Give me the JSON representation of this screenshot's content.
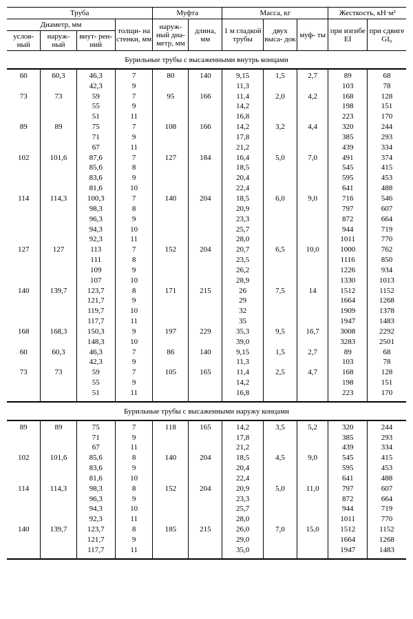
{
  "headers": {
    "g_pipe": "Труба",
    "g_coupling": "Муфта",
    "g_mass": "Масса, кг",
    "g_stiff": "Жесткость, кН·м²",
    "g_diam": "Диаметр, мм",
    "uslov": "услов-\nный",
    "naruj": "наруж-\nный",
    "vnutr": "внут-\nрен-ний",
    "tolsh": "толщи-\nна\nстенки,\nмм",
    "c_diam": "наруж-\nный\nдиа-\nметр,\nмм",
    "c_len": "длина,\nмм",
    "m_1m": "1 м\nгладкой\nтрубы",
    "m_vys": "двух\nвыса-\nдок",
    "m_muf": "муф-\nты",
    "s_ei": "при\nизгибе\nEI",
    "s_gi": "при\nсдвиге\nGI₀"
  },
  "section1": "Бурильные трубы с высаженными внутрь концами",
  "section2": "Бурильные трубы с высаженными наружу концами",
  "rows1": [
    [
      "60",
      "60,3",
      "46,3",
      "7",
      "80",
      "140",
      "9,15",
      "1,5",
      "2,7",
      "89",
      "68"
    ],
    [
      "",
      "",
      "42,3",
      "9",
      "",
      "",
      "11,3",
      "",
      "",
      "103",
      "78"
    ],
    [
      "73",
      "73",
      "59",
      "7",
      "95",
      "166",
      "11,4",
      "2,0",
      "4,2",
      "168",
      "128"
    ],
    [
      "",
      "",
      "55",
      "9",
      "",
      "",
      "14,2",
      "",
      "",
      "198",
      "151"
    ],
    [
      "",
      "",
      "51",
      "11",
      "",
      "",
      "16,8",
      "",
      "",
      "223",
      "170"
    ],
    [
      "89",
      "89",
      "75",
      "7",
      "108",
      "166",
      "14,2",
      "3,2",
      "4,4",
      "320",
      "244"
    ],
    [
      "",
      "",
      "71",
      "9",
      "",
      "",
      "17,8",
      "",
      "",
      "385",
      "293"
    ],
    [
      "",
      "",
      "67",
      "11",
      "",
      "",
      "21,2",
      "",
      "",
      "439",
      "334"
    ],
    [
      "102",
      "101,6",
      "87,6",
      "7",
      "127",
      "184",
      "16,4",
      "5,0",
      "7,0",
      "491",
      "374"
    ],
    [
      "",
      "",
      "85,6",
      "8",
      "",
      "",
      "18,5",
      "",
      "",
      "545",
      "415"
    ],
    [
      "",
      "",
      "83,6",
      "9",
      "",
      "",
      "20,4",
      "",
      "",
      "595",
      "453"
    ],
    [
      "",
      "",
      "81,6",
      "10",
      "",
      "",
      "22,4",
      "",
      "",
      "641",
      "488"
    ],
    [
      "114",
      "114,3",
      "100,3",
      "7",
      "140",
      "204",
      "18,5",
      "6,0",
      "9,0",
      "716",
      "546"
    ],
    [
      "",
      "",
      "98,3",
      "8",
      "",
      "",
      "20,9",
      "",
      "",
      "797",
      "607"
    ],
    [
      "",
      "",
      "96,3",
      "9",
      "",
      "",
      "23,3",
      "",
      "",
      "872",
      "664"
    ],
    [
      "",
      "",
      "94,3",
      "10",
      "",
      "",
      "25,7",
      "",
      "",
      "944",
      "719"
    ],
    [
      "",
      "",
      "92,3",
      "11",
      "",
      "",
      "28,0",
      "",
      "",
      "1011",
      "770"
    ],
    [
      "127",
      "127",
      "113",
      "7",
      "152",
      "204",
      "20,7",
      "6,5",
      "10,0",
      "1000",
      "762"
    ],
    [
      "",
      "",
      "111",
      "8",
      "",
      "",
      "23,5",
      "",
      "",
      "1116",
      "850"
    ],
    [
      "",
      "",
      "109",
      "9",
      "",
      "",
      "26,2",
      "",
      "",
      "1226",
      "934"
    ],
    [
      "",
      "",
      "107",
      "10",
      "",
      "",
      "28,9",
      "",
      "",
      "1330",
      "1013"
    ],
    [
      "140",
      "139,7",
      "123,7",
      "8",
      "171",
      "215",
      "26",
      "7,5",
      "14",
      "1512",
      "1152"
    ],
    [
      "",
      "",
      "121,7",
      "9",
      "",
      "",
      "29",
      "",
      "",
      "1664",
      "1268"
    ],
    [
      "",
      "",
      "119,7",
      "10",
      "",
      "",
      "32",
      "",
      "",
      "1909",
      "1378"
    ],
    [
      "",
      "",
      "117,7",
      "11",
      "",
      "",
      "35",
      "",
      "",
      "1947",
      "1483"
    ],
    [
      "168",
      "168,3",
      "150,3",
      "9",
      "197",
      "229",
      "35,3",
      "9,5",
      "16,7",
      "3008",
      "2292"
    ],
    [
      "",
      "",
      "148,3",
      "10",
      "",
      "",
      "39,0",
      "",
      "",
      "3283",
      "2501"
    ],
    [
      "60",
      "60,3",
      "46,3",
      "7",
      "86",
      "140",
      "9,15",
      "1,5",
      "2,7",
      "89",
      "68"
    ],
    [
      "",
      "",
      "42,3",
      "9",
      "",
      "",
      "11,3",
      "",
      "",
      "103",
      "78"
    ],
    [
      "73",
      "73",
      "59",
      "7",
      "105",
      "165",
      "11,4",
      "2,5",
      "4,7",
      "168",
      "128"
    ],
    [
      "",
      "",
      "55",
      "9",
      "",
      "",
      "14,2",
      "",
      "",
      "198",
      "151"
    ],
    [
      "",
      "",
      "51",
      "11",
      "",
      "",
      "16,8",
      "",
      "",
      "223",
      "170"
    ]
  ],
  "rows2": [
    [
      "89",
      "89",
      "75",
      "7",
      "118",
      "165",
      "14,2",
      "3,5",
      "5,2",
      "320",
      "244"
    ],
    [
      "",
      "",
      "71",
      "9",
      "",
      "",
      "17,8",
      "",
      "",
      "385",
      "293"
    ],
    [
      "",
      "",
      "67",
      "11",
      "",
      "",
      "21,2",
      "",
      "",
      "439",
      "334"
    ],
    [
      "102",
      "101,6",
      "85,6",
      "8",
      "140",
      "204",
      "18,5",
      "4,5",
      "9,0",
      "545",
      "415"
    ],
    [
      "",
      "",
      "83,6",
      "9",
      "",
      "",
      "20,4",
      "",
      "",
      "595",
      "453"
    ],
    [
      "",
      "",
      "81,6",
      "10",
      "",
      "",
      "22,4",
      "",
      "",
      "641",
      "488"
    ],
    [
      "114",
      "114,3",
      "98,3",
      "8",
      "152",
      "204",
      "20,9",
      "5,0",
      "11,0",
      "797",
      "607"
    ],
    [
      "",
      "",
      "96,3",
      "9",
      "",
      "",
      "23,3",
      "",
      "",
      "872",
      "664"
    ],
    [
      "",
      "",
      "94,3",
      "10",
      "",
      "",
      "25,7",
      "",
      "",
      "944",
      "719"
    ],
    [
      "",
      "",
      "92,3",
      "11",
      "",
      "",
      "28,0",
      "",
      "",
      "1011",
      "770"
    ],
    [
      "140",
      "139,7",
      "123,7",
      "8",
      "185",
      "215",
      "26,0",
      "7,0",
      "15,0",
      "1512",
      "1152"
    ],
    [
      "",
      "",
      "121,7",
      "9",
      "",
      "",
      "29,0",
      "",
      "",
      "1664",
      "1268"
    ],
    [
      "",
      "",
      "117,7",
      "11",
      "",
      "",
      "35,0",
      "",
      "",
      "1947",
      "1483"
    ]
  ],
  "line_breaks": [
    2,
    5,
    8,
    12,
    17,
    21,
    25,
    27,
    29
  ],
  "line_breaks2": [
    3,
    6,
    10
  ]
}
